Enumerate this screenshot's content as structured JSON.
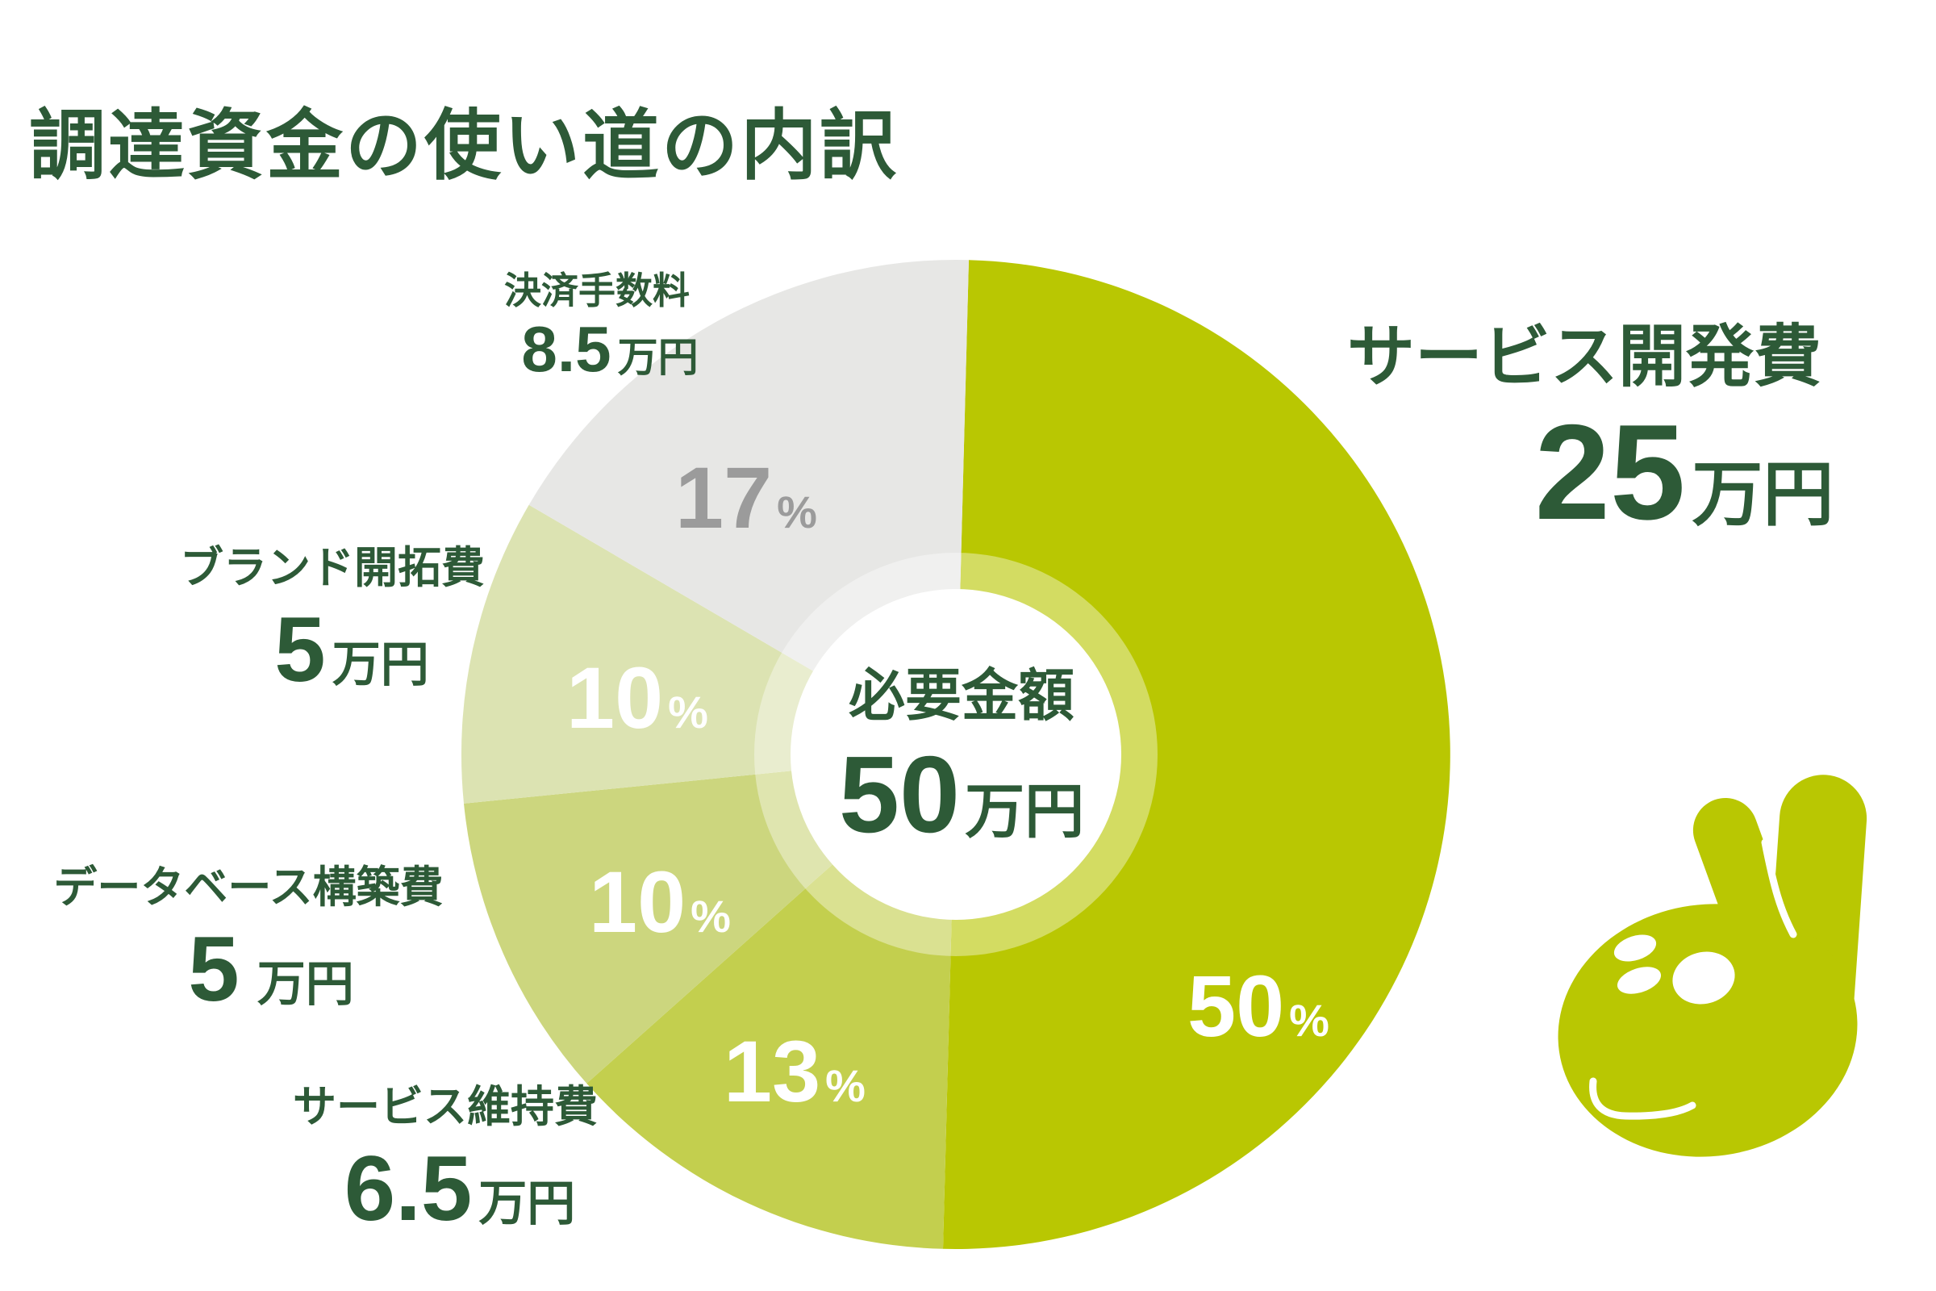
{
  "page": {
    "title": "調達資金の使い道の内訳",
    "background": "#ffffff"
  },
  "colors": {
    "title_text": "#2d5a37",
    "accent": "#b9c702",
    "percent_gray": "#9b9b9b",
    "white": "#ffffff"
  },
  "chart_data": {
    "type": "pie",
    "style": "donut",
    "title": "調達資金の使い道の内訳",
    "start_angle_deg": 1.5,
    "clockwise": true,
    "legend_position": "around-callouts",
    "percent_symbol": "%",
    "center_label": {
      "caption": "必要金額",
      "value": "50",
      "unit": "万円"
    },
    "total": {
      "value": 50,
      "unit": "万円"
    },
    "segments": [
      {
        "label": "サービス開発費",
        "amount": "25",
        "unit": "万円",
        "percent": 50,
        "color": "#b9c702",
        "percent_label_color": "#ffffff",
        "percent_label_xy": [
          1560,
          1247
        ]
      },
      {
        "label": "サービス維持費",
        "amount": "6.5",
        "unit": "万円",
        "percent": 13,
        "color": "#c3cf4e",
        "percent_label_color": "#ffffff",
        "percent_label_xy": [
          985,
          1328
        ]
      },
      {
        "label": "データベース構築費",
        "amount": "5",
        "unit": "万円",
        "percent": 10,
        "color": "#ccd67e",
        "percent_label_color": "#ffffff",
        "percent_label_xy": [
          818,
          1118
        ]
      },
      {
        "label": "ブランド開拓費",
        "amount": "5",
        "unit": "万円",
        "percent": 10,
        "color": "#dce3b2",
        "percent_label_color": "#ffffff",
        "percent_label_xy": [
          790,
          865
        ]
      },
      {
        "label": "決済手数料",
        "amount": "8.5",
        "unit": "万円",
        "percent": 17,
        "color": "#e7e7e5",
        "percent_label_color": "#9b9b9b",
        "percent_label_xy": [
          925,
          617
        ]
      }
    ]
  },
  "mascot": {
    "name": "rabbit",
    "color": "#b9c702"
  }
}
